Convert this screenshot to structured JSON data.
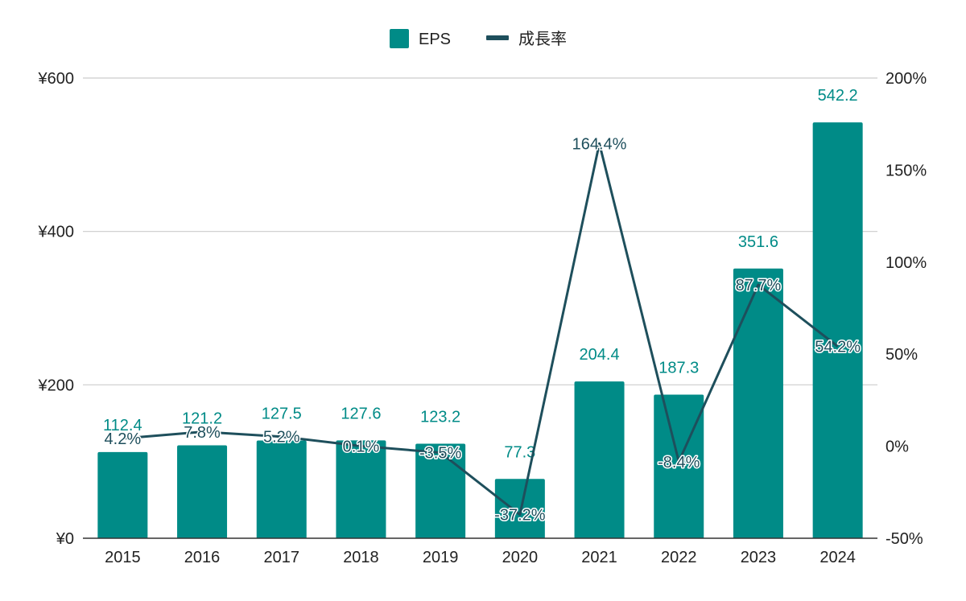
{
  "chart_data": {
    "type": "bar",
    "categories": [
      "2015",
      "2016",
      "2017",
      "2018",
      "2019",
      "2020",
      "2021",
      "2022",
      "2023",
      "2024"
    ],
    "series": [
      {
        "name": "EPS",
        "type": "bar",
        "axis": "left",
        "color": "#008b87",
        "values": [
          112.4,
          121.2,
          127.5,
          127.6,
          123.2,
          77.3,
          204.4,
          187.3,
          351.6,
          542.2
        ],
        "labels": [
          "112.4",
          "121.2",
          "127.5",
          "127.6",
          "123.2",
          "77.3",
          "204.4",
          "187.3",
          "351.6",
          "542.2"
        ]
      },
      {
        "name": "成長率",
        "type": "line",
        "axis": "right",
        "color": "#1e4f5c",
        "values": [
          4.2,
          7.8,
          5.2,
          0.1,
          -3.5,
          -37.2,
          164.4,
          -8.4,
          87.7,
          54.2
        ],
        "labels": [
          "4.2%",
          "7.8%",
          "5.2%",
          "0.1%",
          "-3.5%",
          "-37.2%",
          "164.4%",
          "-8.4%",
          "87.7%",
          "54.2%"
        ]
      }
    ],
    "y_left": {
      "min": 0,
      "max": 600,
      "ticks": [
        0,
        200,
        400,
        600
      ],
      "tick_labels": [
        "¥0",
        "¥200",
        "¥400",
        "¥600"
      ]
    },
    "y_right": {
      "min": -50,
      "max": 200,
      "ticks": [
        -50,
        0,
        50,
        100,
        150,
        200
      ],
      "tick_labels": [
        "-50%",
        "0%",
        "50%",
        "100%",
        "150%",
        "200%"
      ]
    },
    "grid": true,
    "legend": {
      "position": "top-center",
      "items": [
        "EPS",
        "成長率"
      ]
    },
    "gridline_color": "#cccccc"
  }
}
